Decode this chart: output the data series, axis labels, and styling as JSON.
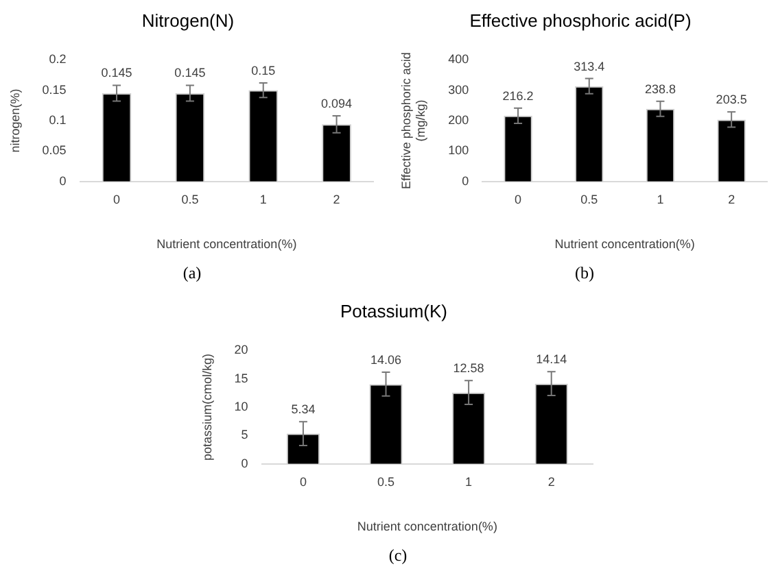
{
  "chart_data": [
    {
      "type": "bar",
      "title": "Nitrogen(N)",
      "xlabel": "Nutrient concentration(%)",
      "ylabel": "nitrogen(%)",
      "categories": [
        "0",
        "0.5",
        "1",
        "2"
      ],
      "values": [
        0.145,
        0.145,
        0.15,
        0.094
      ],
      "errors": [
        0.013,
        0.013,
        0.012,
        0.014
      ],
      "color": "#000000",
      "ylim": [
        0,
        0.2
      ],
      "yticks": [
        0,
        0.05,
        0.1,
        0.15,
        0.2
      ],
      "grid": false,
      "legend": false,
      "data_labels": true,
      "annotations": [
        "(a)"
      ]
    },
    {
      "type": "bar",
      "title": "Effective phosphoric acid(P)",
      "xlabel": "Nutrient concentration(%)",
      "ylabel": "Effective phosphoric acid\n(mg/kg)",
      "categories": [
        "0",
        "0.5",
        "1",
        "2"
      ],
      "values": [
        216.2,
        313.4,
        238.8,
        203.5
      ],
      "errors": [
        25,
        25,
        25,
        25
      ],
      "color": "#000000",
      "ylim": [
        0,
        400
      ],
      "yticks": [
        0,
        100,
        200,
        300,
        400
      ],
      "grid": false,
      "legend": false,
      "data_labels": true,
      "annotations": [
        "(b)"
      ]
    },
    {
      "type": "bar",
      "title": "Potassium(K)",
      "xlabel": "Nutrient concentration(%)",
      "ylabel": "potassium(cmol/kg)",
      "categories": [
        "0",
        "0.5",
        "1",
        "2"
      ],
      "values": [
        5.34,
        14.06,
        12.58,
        14.14
      ],
      "errors": [
        2.1,
        2.1,
        2.1,
        2.1
      ],
      "color": "#000000",
      "ylim": [
        0,
        20
      ],
      "yticks": [
        0,
        5,
        10,
        15,
        20
      ],
      "grid": false,
      "legend": false,
      "data_labels": true,
      "annotations": [
        "(c)"
      ]
    }
  ]
}
